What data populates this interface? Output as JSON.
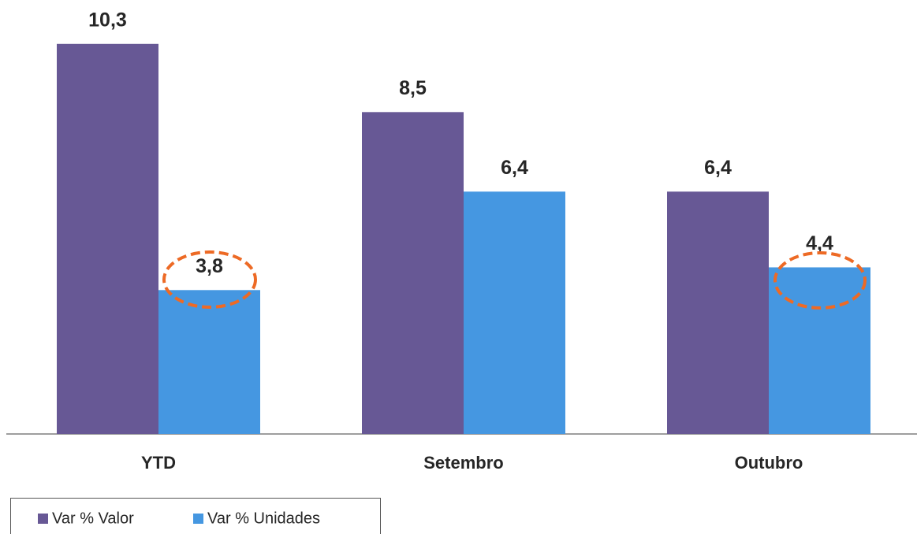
{
  "chart_data": {
    "type": "bar",
    "categories": [
      "YTD",
      "Setembro",
      "Outubro"
    ],
    "series": [
      {
        "name": "Var % Valor",
        "color": "#675895",
        "values": [
          10.3,
          8.5,
          6.4
        ],
        "value_labels": [
          "10,3",
          "8,5",
          "6,4"
        ]
      },
      {
        "name": "Var % Unidades",
        "color": "#4597e1",
        "values": [
          3.8,
          6.4,
          4.4
        ],
        "value_labels": [
          "3,8",
          "6,4",
          "4,4"
        ]
      }
    ],
    "ylim": [
      0,
      11.46
    ]
  }
}
